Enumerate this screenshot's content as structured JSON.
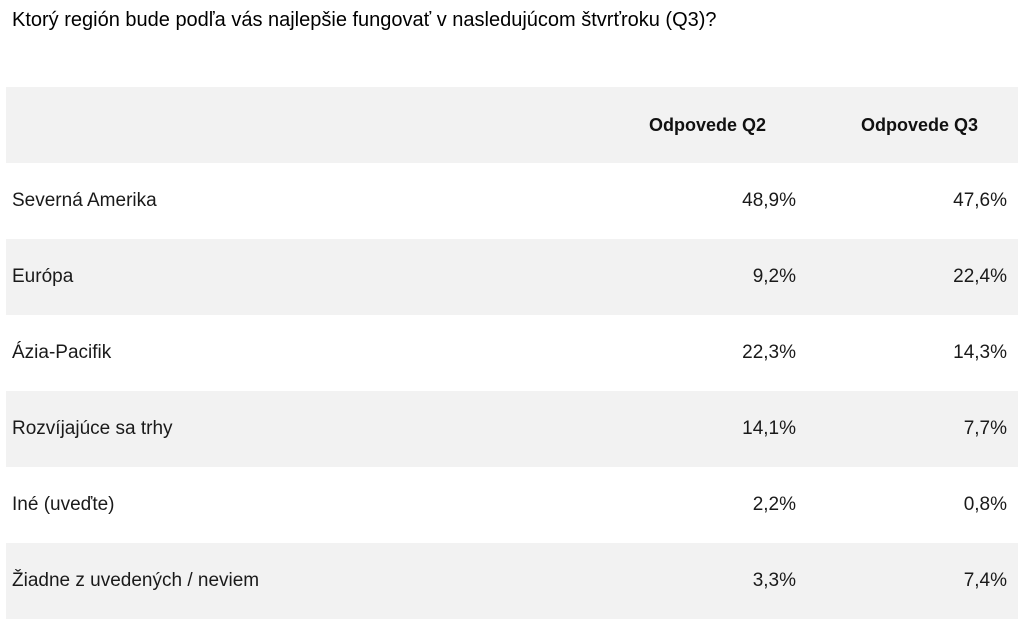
{
  "chart_data": {
    "type": "table",
    "title": "Ktorý región bude podľa vás najlepšie fungovať v nasledujúcom štvrťroku (Q3)?",
    "columns": [
      "",
      "Odpovede Q2",
      "Odpovede Q3"
    ],
    "rows": [
      {
        "label": "Severná Amerika",
        "q2": "48,9%",
        "q3": "47,6%"
      },
      {
        "label": "Európa",
        "q2": "9,2%",
        "q3": "22,4%"
      },
      {
        "label": "Ázia-Pacifik",
        "q2": "22,3%",
        "q3": "14,3%"
      },
      {
        "label": "Rozvíjajúce sa trhy",
        "q2": "14,1%",
        "q3": "7,7%"
      },
      {
        "label": "Iné (uveďte)",
        "q2": "2,2%",
        "q3": "0,8%"
      },
      {
        "label": "Žiadne z uvedených / neviem",
        "q2": "3,3%",
        "q3": "7,4%"
      }
    ],
    "series": [
      {
        "name": "Odpovede Q2",
        "values": [
          48.9,
          9.2,
          22.3,
          14.1,
          2.2,
          3.3
        ]
      },
      {
        "name": "Odpovede Q3",
        "values": [
          47.6,
          22.4,
          14.3,
          7.7,
          0.8,
          7.4
        ]
      }
    ],
    "categories": [
      "Severná Amerika",
      "Európa",
      "Ázia-Pacifik",
      "Rozvíjajúce sa trhy",
      "Iné (uveďte)",
      "Žiadne z uvedených / neviem"
    ]
  },
  "colors": {
    "shaded_row": "#f2f2f2",
    "text": "#1a1a1a"
  }
}
